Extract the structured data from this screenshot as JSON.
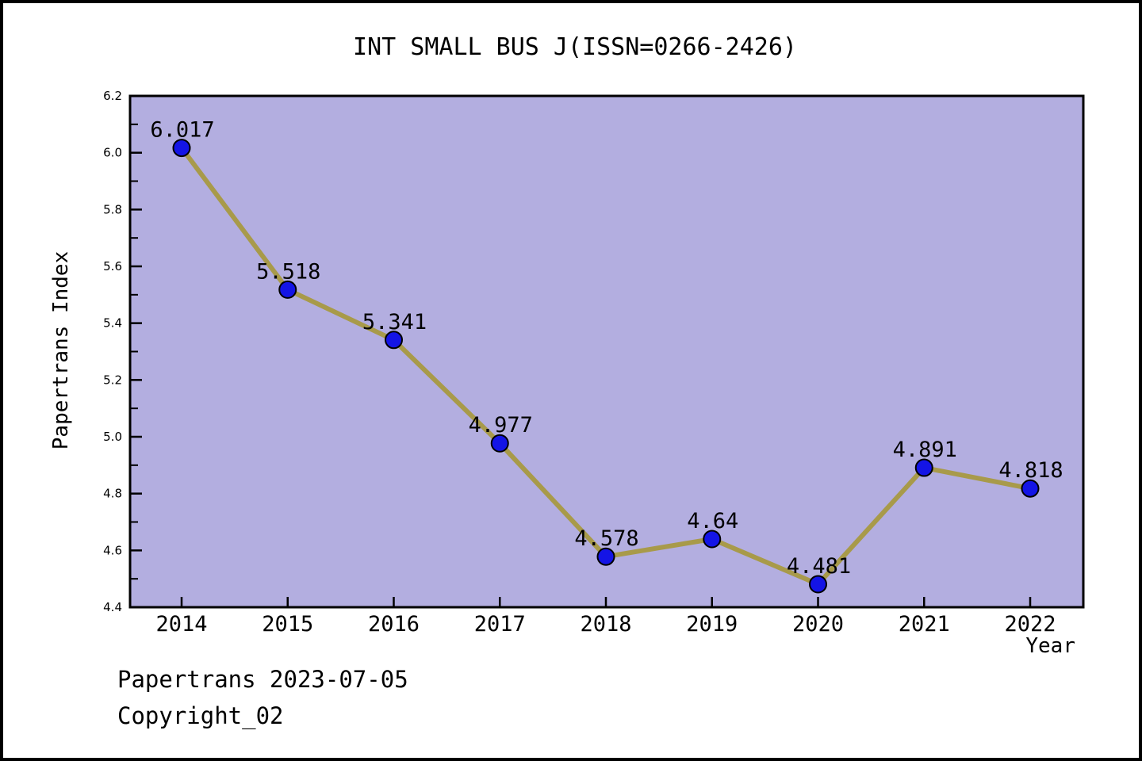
{
  "page": {
    "footer_line1": "Papertrans 2023-07-05",
    "footer_line2": "Copyright_02"
  },
  "chart_data": {
    "type": "line",
    "title": "INT SMALL BUS J(ISSN=0266-2426)",
    "xlabel": "Year",
    "ylabel": "Papertrans Index",
    "categories": [
      "2014",
      "2015",
      "2016",
      "2017",
      "2018",
      "2019",
      "2020",
      "2021",
      "2022"
    ],
    "series": [
      {
        "name": "Papertrans Index",
        "values": [
          6.017,
          5.518,
          5.341,
          4.977,
          4.578,
          4.64,
          4.481,
          4.891,
          4.818
        ],
        "point_labels": [
          "6.017",
          "5.518",
          "5.341",
          "4.977",
          "4.578",
          "4.64",
          "4.481",
          "4.891",
          "4.818"
        ]
      }
    ],
    "ylim": [
      4.4,
      6.2
    ],
    "y_tick_labels": [
      "4.4",
      "4.6",
      "4.8",
      "5.0",
      "5.2",
      "5.4",
      "5.6",
      "5.8",
      "6.0",
      "6.2"
    ],
    "y_major_step": 0.2,
    "y_minor_step": 0.1,
    "grid": false,
    "legend_position": "none",
    "tick_direction": "in",
    "colors": {
      "plot_background": "#b3aee0",
      "line": "#a89a4a",
      "marker_fill": "#1414e6",
      "marker_edge": "#000000",
      "spine": "#000000",
      "text": "#000000",
      "page_background": "#ffffff"
    }
  }
}
